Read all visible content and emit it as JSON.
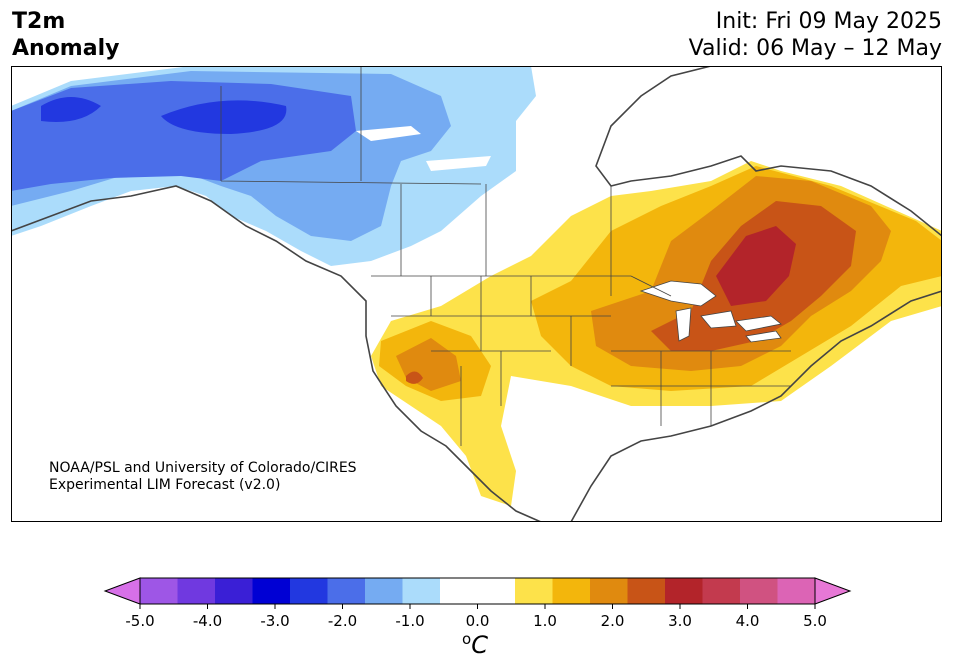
{
  "header": {
    "variable_line1": "T2m",
    "variable_line2": "Anomaly",
    "init_text": "Init: Fri 09 May 2025",
    "valid_text": "Valid: 06 May – 12 May"
  },
  "credit": {
    "line1": "NOAA/PSL and University of Colorado/CIRES",
    "line2": "Experimental LIM Forecast (v2.0)"
  },
  "colorbar": {
    "ticks": [
      "-5.0",
      "-4.0",
      "-3.0",
      "-2.0",
      "-1.0",
      "0.0",
      "1.0",
      "2.0",
      "3.0",
      "4.0",
      "5.0"
    ],
    "unit_super": "o",
    "unit_main": "C",
    "colors": [
      "#9e56e6",
      "#7039e0",
      "#3a1fd6",
      "#0000d4",
      "#2238e0",
      "#4b6ee9",
      "#75abf2",
      "#abdcfb",
      "#ffffff",
      "#ffffff",
      "#fde24a",
      "#f3b60c",
      "#e08a0f",
      "#c85417",
      "#b3242a",
      "#c33a4e",
      "#d05281",
      "#dc64b5"
    ],
    "extend_low": "#d770e8",
    "extend_high": "#e778d6"
  },
  "map": {
    "region": "North America",
    "colors": {
      "cold_deep": "#2238e0",
      "cold_mid": "#4b6ee9",
      "cold_light": "#75abf2",
      "cold_pale": "#abdcfb",
      "warm_1": "#fde24a",
      "warm_2": "#f3b60c",
      "warm_3": "#e08a0f",
      "warm_4": "#c85417",
      "warm_5": "#b3242a",
      "boundary": "#444444"
    }
  }
}
